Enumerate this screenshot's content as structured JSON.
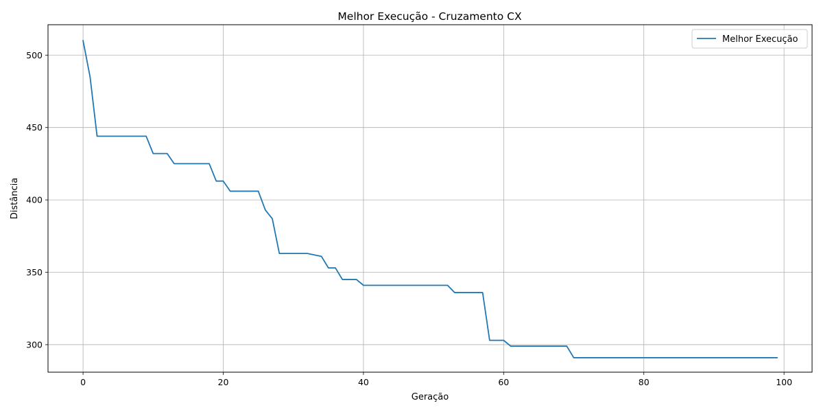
{
  "chart_data": {
    "type": "line",
    "title": "Melhor Execução - Cruzamento CX",
    "xlabel": "Geração",
    "ylabel": "Distância",
    "xlim": [
      -5,
      104
    ],
    "ylim": [
      281,
      521
    ],
    "xticks": [
      0,
      20,
      40,
      60,
      80,
      100
    ],
    "yticks": [
      300,
      350,
      400,
      450,
      500
    ],
    "grid": true,
    "legend_position": "upper right",
    "series": [
      {
        "name": "Melhor Execução",
        "color": "#1f77b4",
        "x": [
          0,
          1,
          2,
          3,
          4,
          5,
          6,
          7,
          8,
          9,
          10,
          11,
          12,
          13,
          14,
          15,
          16,
          17,
          18,
          19,
          20,
          21,
          22,
          23,
          24,
          25,
          26,
          27,
          28,
          29,
          30,
          31,
          32,
          33,
          34,
          35,
          36,
          37,
          38,
          39,
          40,
          41,
          42,
          43,
          44,
          45,
          46,
          47,
          48,
          49,
          50,
          51,
          52,
          53,
          54,
          55,
          56,
          57,
          58,
          59,
          60,
          61,
          62,
          63,
          64,
          65,
          66,
          67,
          68,
          69,
          70,
          71,
          72,
          73,
          74,
          75,
          76,
          77,
          78,
          79,
          80,
          81,
          82,
          83,
          84,
          85,
          86,
          87,
          88,
          89,
          90,
          91,
          92,
          93,
          94,
          95,
          96,
          97,
          98,
          99
        ],
        "y": [
          510,
          485,
          444,
          444,
          444,
          444,
          444,
          444,
          444,
          444,
          432,
          432,
          432,
          425,
          425,
          425,
          425,
          425,
          425,
          413,
          413,
          406,
          406,
          406,
          406,
          406,
          393,
          387,
          363,
          363,
          363,
          363,
          363,
          362,
          361,
          353,
          353,
          345,
          345,
          345,
          341,
          341,
          341,
          341,
          341,
          341,
          341,
          341,
          341,
          341,
          341,
          341,
          341,
          336,
          336,
          336,
          336,
          336,
          303,
          303,
          303,
          299,
          299,
          299,
          299,
          299,
          299,
          299,
          299,
          299,
          291,
          291,
          291,
          291,
          291,
          291,
          291,
          291,
          291,
          291,
          291,
          291,
          291,
          291,
          291,
          291,
          291,
          291,
          291,
          291,
          291,
          291,
          291,
          291,
          291,
          291,
          291,
          291,
          291,
          291
        ]
      }
    ]
  }
}
